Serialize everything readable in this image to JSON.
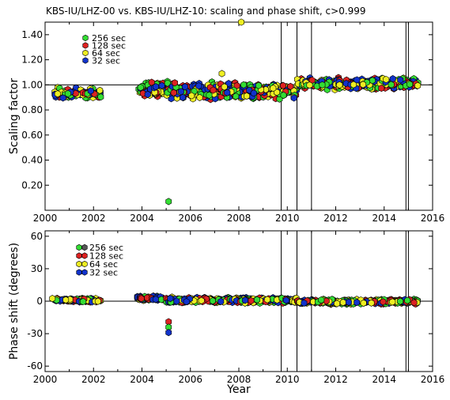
{
  "title": "KBS-IU/LHZ-00 vs. KBS-IU/LHZ-10: scaling and phase shift, c>0.999",
  "chart_data": [
    {
      "type": "scatter",
      "id": "scaling",
      "ylabel": "Scaling factor",
      "xlabel": "",
      "xlim": [
        2000,
        2016
      ],
      "ylim": [
        0.0,
        1.5
      ],
      "xticks": [
        2000,
        2002,
        2004,
        2006,
        2008,
        2010,
        2012,
        2014,
        2016
      ],
      "yticks": [
        0.2,
        0.4,
        0.6,
        0.8,
        1.0,
        1.2,
        1.4
      ],
      "ytick_labels": [
        "0.20",
        "0.40",
        "0.60",
        "0.80",
        "1.00",
        "1.20",
        "1.40"
      ],
      "reference_line": 1.0,
      "vertical_lines": [
        2009.75,
        2010.4,
        2011.0,
        2014.9,
        2015.0
      ],
      "legend": [
        {
          "label": "256 sec",
          "color": "#33dd33"
        },
        {
          "label": "128 sec",
          "color": "#dd2222"
        },
        {
          "label": "64 sec",
          "color": "#eeee22"
        },
        {
          "label": "32 sec",
          "color": "#1133cc"
        }
      ],
      "outliers": [
        {
          "x": 2005.1,
          "y": 0.07,
          "period": "256 sec"
        },
        {
          "x": 2007.3,
          "y": 1.09,
          "period": "64 sec"
        },
        {
          "x": 2008.1,
          "y": 1.5,
          "period": "64 sec"
        }
      ],
      "clusters": [
        {
          "x": [
            2000.4,
            2002.3
          ],
          "y": [
            0.88,
            0.98
          ]
        },
        {
          "x": [
            2003.8,
            2004.9
          ],
          "y": [
            0.9,
            1.03
          ]
        },
        {
          "x": [
            2005.0,
            2010.4
          ],
          "y": [
            0.88,
            1.03
          ]
        },
        {
          "x": [
            2010.4,
            2015.4
          ],
          "y": [
            0.96,
            1.06
          ]
        }
      ]
    },
    {
      "type": "scatter",
      "id": "phase",
      "ylabel": "Phase shift (degrees)",
      "xlabel": "Year",
      "xlim": [
        2000,
        2016
      ],
      "ylim": [
        -65,
        65
      ],
      "xticks": [
        2000,
        2002,
        2004,
        2006,
        2008,
        2010,
        2012,
        2014,
        2016
      ],
      "yticks": [
        -60,
        -30,
        0,
        30,
        60
      ],
      "ytick_labels": [
        "-60",
        "-30",
        "0",
        "30",
        "60"
      ],
      "reference_line": 0,
      "vertical_lines": [
        2009.75,
        2010.4,
        2011.0,
        2014.9,
        2015.0
      ],
      "legend": [
        {
          "label": "256 sec",
          "color": "#33dd33"
        },
        {
          "label": "128 sec",
          "color": "#dd2222"
        },
        {
          "label": "64 sec",
          "color": "#eeee22"
        },
        {
          "label": "32 sec",
          "color": "#1133cc"
        }
      ],
      "outliers": [
        {
          "x": 2005.1,
          "y": -19,
          "period": "128 sec"
        },
        {
          "x": 2005.1,
          "y": -24,
          "period": "256 sec"
        },
        {
          "x": 2005.1,
          "y": -29,
          "period": "32 sec"
        },
        {
          "x": 2000.3,
          "y": 2.5,
          "period": "64 sec"
        }
      ],
      "clusters": [
        {
          "x": [
            2000.4,
            2002.3
          ],
          "y": [
            -1,
            3
          ]
        },
        {
          "x": [
            2003.8,
            2004.9
          ],
          "y": [
            0,
            5
          ]
        },
        {
          "x": [
            2005.0,
            2010.4
          ],
          "y": [
            -2,
            4
          ]
        },
        {
          "x": [
            2010.4,
            2015.4
          ],
          "y": [
            -3,
            2
          ]
        }
      ]
    }
  ]
}
